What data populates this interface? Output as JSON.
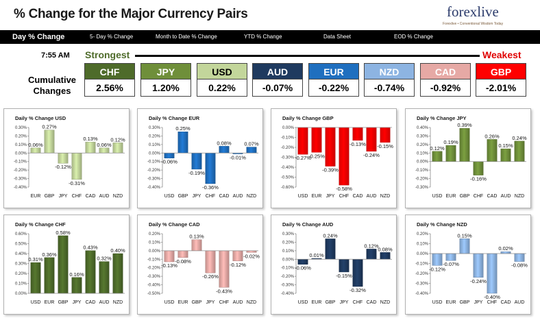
{
  "header": {
    "title": "% Change for the Major Currency Pairs",
    "logo_text": "forexlive",
    "logo_sub": "Forexlive • Conventional Wisdom Today"
  },
  "nav": {
    "items": [
      "Day % Change",
      "5- Day % Change",
      "Month to Date % Change",
      "YTD % Change",
      "Data Sheet",
      "EOD % Change"
    ]
  },
  "strength": {
    "time": "7:55 AM",
    "strongest": "Strongest",
    "weakest": "Weakest",
    "cumulative_label_1": "Cumulative",
    "cumulative_label_2": "Changes",
    "currencies": [
      {
        "code": "CHF",
        "value": "2.56%",
        "color": "#4e6b2a"
      },
      {
        "code": "JPY",
        "value": "1.20%",
        "color": "#6f8f3a"
      },
      {
        "code": "USD",
        "value": "0.22%",
        "color": "#c3d69b"
      },
      {
        "code": "AUD",
        "value": "-0.07%",
        "color": "#1f3a5f"
      },
      {
        "code": "EUR",
        "value": "-0.22%",
        "color": "#1f6fbf"
      },
      {
        "code": "NZD",
        "value": "-0.74%",
        "color": "#8db4e2"
      },
      {
        "code": "CAD",
        "value": "-0.92%",
        "color": "#e6a9a5"
      },
      {
        "code": "GBP",
        "value": "-2.01%",
        "color": "#ff0000"
      }
    ]
  },
  "chart_data": [
    {
      "type": "bar",
      "title": "Daily % Change USD",
      "categories": [
        "EUR",
        "GBP",
        "JPY",
        "CHF",
        "CAD",
        "AUD",
        "NZD"
      ],
      "values": [
        0.06,
        0.27,
        -0.12,
        -0.31,
        0.13,
        0.06,
        0.12
      ],
      "labels": [
        "0.06%",
        "0.27%",
        "-0.12%",
        "-0.31%",
        "0.13%",
        "0.06%",
        "0.12%"
      ],
      "ylim": [
        -0.4,
        0.3
      ],
      "yticks": [
        -0.4,
        -0.3,
        -0.2,
        -0.1,
        0,
        0.1,
        0.2,
        0.3
      ],
      "ytick_labels": [
        "-0.40%",
        "-0.30%",
        "-0.20%",
        "-0.10%",
        "0.00%",
        "0.10%",
        "0.20%",
        "0.30%"
      ],
      "color": "#c3d69b",
      "grid": false
    },
    {
      "type": "bar",
      "title": "Daily % Change EUR",
      "categories": [
        "USD",
        "GBP",
        "JPY",
        "CHF",
        "CAD",
        "AUD",
        "NZD"
      ],
      "values": [
        -0.06,
        0.25,
        -0.19,
        -0.36,
        0.08,
        -0.01,
        0.07
      ],
      "labels": [
        "-0.06%",
        "0.25%",
        "-0.19%",
        "-0.36%",
        "0.08%",
        "-0.01%",
        "0.07%"
      ],
      "ylim": [
        -0.4,
        0.3
      ],
      "yticks": [
        -0.4,
        -0.3,
        -0.2,
        -0.1,
        0,
        0.1,
        0.2,
        0.3
      ],
      "ytick_labels": [
        "-0.40%",
        "-0.30%",
        "-0.20%",
        "-0.10%",
        "0.00%",
        "0.10%",
        "0.20%",
        "0.30%"
      ],
      "color": "#1f6fbf",
      "grid": false
    },
    {
      "type": "bar",
      "title": "Daily % Change GBP",
      "categories": [
        "USD",
        "EUR",
        "JPY",
        "CHF",
        "CAD",
        "AUD",
        "NZD"
      ],
      "values": [
        -0.27,
        -0.25,
        -0.39,
        -0.58,
        -0.13,
        -0.24,
        -0.15
      ],
      "labels": [
        "-0.27%",
        "-0.25%",
        "-0.39%",
        "-0.58%",
        "-0.13%",
        "-0.24%",
        "-0.15%"
      ],
      "ylim": [
        -0.6,
        0
      ],
      "yticks": [
        -0.6,
        -0.5,
        -0.4,
        -0.3,
        -0.2,
        -0.1,
        0
      ],
      "ytick_labels": [
        "-0.60%",
        "-0.50%",
        "-0.40%",
        "-0.30%",
        "-0.20%",
        "-0.10%",
        "0.00%"
      ],
      "color": "#ff0000",
      "grid": false
    },
    {
      "type": "bar",
      "title": "Daily % Change JPY",
      "categories": [
        "USD",
        "EUR",
        "GBP",
        "CHF",
        "CAD",
        "AUD",
        "NZD"
      ],
      "values": [
        0.12,
        0.19,
        0.39,
        -0.16,
        0.26,
        0.15,
        0.24
      ],
      "labels": [
        "0.12%",
        "0.19%",
        "0.39%",
        "-0.16%",
        "0.26%",
        "0.15%",
        "0.24%"
      ],
      "ylim": [
        -0.3,
        0.4
      ],
      "yticks": [
        -0.3,
        -0.2,
        -0.1,
        0,
        0.1,
        0.2,
        0.3,
        0.4
      ],
      "ytick_labels": [
        "-0.30%",
        "-0.20%",
        "-0.10%",
        "0.00%",
        "0.10%",
        "0.20%",
        "0.30%",
        "0.40%"
      ],
      "color": "#6f8f3a",
      "grid": false
    },
    {
      "type": "bar",
      "title": "Daily % Change CHF",
      "categories": [
        "USD",
        "EUR",
        "GBP",
        "JPY",
        "CAD",
        "AUD",
        "NZD"
      ],
      "values": [
        0.31,
        0.36,
        0.58,
        0.16,
        0.43,
        0.32,
        0.4
      ],
      "labels": [
        "0.31%",
        "0.36%",
        "0.58%",
        "0.16%",
        "0.43%",
        "0.32%",
        "0.40%"
      ],
      "ylim": [
        0,
        0.6
      ],
      "yticks": [
        0,
        0.1,
        0.2,
        0.3,
        0.4,
        0.5,
        0.6
      ],
      "ytick_labels": [
        "0.00%",
        "0.10%",
        "0.20%",
        "0.30%",
        "0.40%",
        "0.50%",
        "0.60%"
      ],
      "color": "#4e6b2a",
      "grid": false
    },
    {
      "type": "bar",
      "title": "Daily % Change CAD",
      "categories": [
        "USD",
        "EUR",
        "GBP",
        "JPY",
        "CHF",
        "AUD",
        "NZD"
      ],
      "values": [
        -0.13,
        -0.08,
        0.13,
        -0.26,
        -0.43,
        -0.12,
        -0.02
      ],
      "labels": [
        "-0.13%",
        "-0.08%",
        "0.13%",
        "-0.26%",
        "-0.43%",
        "-0.12%",
        "-0.02%"
      ],
      "ylim": [
        -0.5,
        0.2
      ],
      "yticks": [
        -0.5,
        -0.4,
        -0.3,
        -0.2,
        -0.1,
        0,
        0.1,
        0.2
      ],
      "ytick_labels": [
        "-0.50%",
        "-0.40%",
        "-0.30%",
        "-0.20%",
        "-0.10%",
        "0.00%",
        "0.10%",
        "0.20%"
      ],
      "color": "#e6a9a5",
      "grid": false
    },
    {
      "type": "bar",
      "title": "Daily % Change AUD",
      "categories": [
        "USD",
        "EUR",
        "GBP",
        "JPY",
        "CHF",
        "CAD",
        "NZD"
      ],
      "values": [
        -0.06,
        0.01,
        0.24,
        -0.15,
        -0.32,
        0.12,
        0.08
      ],
      "labels": [
        "-0.06%",
        "0.01%",
        "0.24%",
        "-0.15%",
        "-0.32%",
        "0.12%",
        "0.08%"
      ],
      "ylim": [
        -0.4,
        0.3
      ],
      "yticks": [
        -0.4,
        -0.3,
        -0.2,
        -0.1,
        0,
        0.1,
        0.2,
        0.3
      ],
      "ytick_labels": [
        "-0.40%",
        "-0.30%",
        "-0.20%",
        "-0.10%",
        "0.00%",
        "0.10%",
        "0.20%",
        "0.30%"
      ],
      "color": "#1f3a5f",
      "grid": false
    },
    {
      "type": "bar",
      "title": "Daily % Change NZD",
      "categories": [
        "USD",
        "EUR",
        "GBP",
        "JPY",
        "CHF",
        "CAD",
        "AUD"
      ],
      "values": [
        -0.12,
        -0.07,
        0.15,
        -0.24,
        -0.4,
        0.02,
        -0.08
      ],
      "labels": [
        "-0.12%",
        "-0.07%",
        "0.15%",
        "-0.24%",
        "-0.40%",
        "0.02%",
        "-0.08%"
      ],
      "ylim": [
        -0.4,
        0.2
      ],
      "yticks": [
        -0.4,
        -0.3,
        -0.2,
        -0.1,
        0,
        0.1,
        0.2
      ],
      "ytick_labels": [
        "-0.40%",
        "-0.30%",
        "-0.20%",
        "-0.10%",
        "0.00%",
        "0.10%",
        "0.20%"
      ],
      "color": "#8db4e2",
      "grid": false
    }
  ]
}
